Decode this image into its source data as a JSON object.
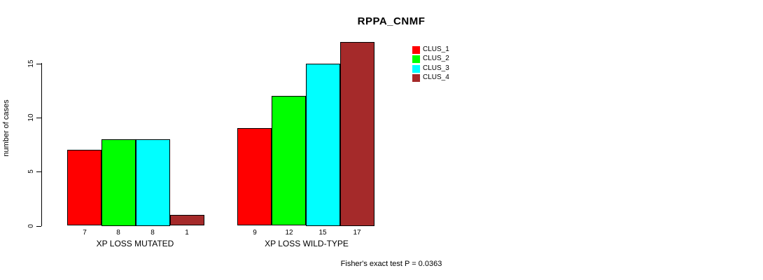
{
  "chart_data": {
    "type": "bar",
    "title": "RPPA_CNMF",
    "ylabel": "number of cases",
    "xlabel": "",
    "yticks": [
      0,
      5,
      10,
      15
    ],
    "ylim": [
      0,
      17.7
    ],
    "grid": false,
    "legend_position": "top-right",
    "categories": [
      "XP LOSS MUTATED",
      "XP LOSS WILD-TYPE"
    ],
    "series": [
      {
        "name": "CLUS_1",
        "color": "#FF0000",
        "values": [
          7,
          9
        ]
      },
      {
        "name": "CLUS_2",
        "color": "#00FF00",
        "values": [
          8,
          12
        ]
      },
      {
        "name": "CLUS_3",
        "color": "#00FFFF",
        "values": [
          8,
          15
        ]
      },
      {
        "name": "CLUS_4",
        "color": "#A52A2A",
        "values": [
          1,
          17
        ]
      }
    ],
    "bar_value_labels_shown": true,
    "footnote": "Fisher's exact test P = 0.0363"
  },
  "colors": {
    "axis": "#000000",
    "text": "#000000",
    "background": "#FFFFFF"
  }
}
